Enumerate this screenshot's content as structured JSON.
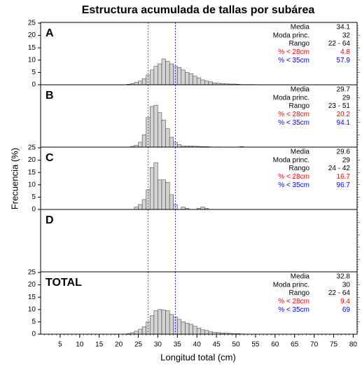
{
  "title": "Estructura acumulada de tallas por subárea",
  "xlabel": "Longitud total (cm)",
  "ylabel": "Frecuencia (%)",
  "xlim": [
    0,
    81
  ],
  "xticks": [
    5,
    10,
    15,
    20,
    25,
    30,
    35,
    40,
    45,
    50,
    55,
    60,
    65,
    70,
    75,
    80
  ],
  "chart_data": [
    {
      "type": "histogram",
      "label": "A",
      "color": "#d3d3d3",
      "bins": [
        22,
        23,
        24,
        25,
        26,
        27,
        28,
        29,
        30,
        31,
        32,
        33,
        34,
        35,
        36,
        37,
        38,
        39,
        40,
        41,
        42,
        43,
        44,
        45,
        46,
        47,
        48,
        49,
        50,
        51,
        52,
        53,
        54,
        55
      ],
      "values": [
        0.2,
        0.5,
        1,
        1.5,
        2.5,
        4,
        6,
        7.5,
        8.5,
        10.5,
        9.5,
        8.5,
        7.5,
        7,
        6,
        5,
        4.5,
        3.5,
        2.8,
        2,
        1.5,
        1.2,
        0.8,
        0.6,
        0.5,
        0.4,
        0.3,
        0.3,
        0.2,
        0.1,
        0.1,
        0.1,
        0.1
      ],
      "ylim": [
        0,
        25
      ],
      "yticks": [
        0,
        5,
        10,
        15,
        20,
        25
      ],
      "reference_lines": [
        {
          "value": 27.5,
          "color": "#ff0000"
        },
        {
          "value": 34.5,
          "color": "#0000ff"
        }
      ],
      "stats": [
        {
          "label": "Media",
          "value": 34.1,
          "color": "#000000"
        },
        {
          "label": "Moda princ.",
          "value": 32,
          "color": "#000000"
        },
        {
          "label": "Rango",
          "value": "22 - 64",
          "color": "#000000"
        },
        {
          "label": "% < 28cm",
          "value": 4.8,
          "color": "#ff0000"
        },
        {
          "label": "% < 35cm",
          "value": 57.9,
          "color": "#0000ff"
        }
      ]
    },
    {
      "type": "histogram",
      "label": "B",
      "color": "#d3d3d3",
      "bins": [
        23,
        24,
        25,
        26,
        27,
        28,
        29,
        30,
        31,
        32,
        33,
        34,
        35,
        36,
        37,
        38,
        39,
        40,
        41,
        42,
        43,
        44,
        45,
        46,
        47,
        48,
        49,
        50,
        51,
        52
      ],
      "values": [
        0.3,
        0.8,
        2,
        5,
        12,
        16.5,
        17,
        14,
        11,
        7.5,
        4,
        2,
        1,
        0.5,
        0.5,
        0.5,
        0.4,
        0.3,
        0.2,
        0.2,
        0.1,
        0,
        0.1,
        0,
        0,
        0,
        0,
        0,
        0.2
      ],
      "ylim": [
        0,
        25
      ],
      "yticks": [],
      "reference_lines": [
        {
          "value": 27.5,
          "color": "#ff0000"
        },
        {
          "value": 34.5,
          "color": "#0000ff"
        }
      ],
      "stats": [
        {
          "label": "Media",
          "value": 29.7,
          "color": "#000000"
        },
        {
          "label": "Moda princ.",
          "value": 29,
          "color": "#000000"
        },
        {
          "label": "Rango",
          "value": "23 - 51",
          "color": "#000000"
        },
        {
          "label": "% < 28cm",
          "value": 20.2,
          "color": "#ff0000"
        },
        {
          "label": "% < 35cm",
          "value": 94.1,
          "color": "#0000ff"
        }
      ]
    },
    {
      "type": "histogram",
      "label": "C",
      "color": "#d3d3d3",
      "bins": [
        24,
        25,
        26,
        27,
        28,
        29,
        30,
        31,
        32,
        33,
        34,
        35,
        36,
        37,
        38,
        39,
        40,
        41,
        42,
        43
      ],
      "values": [
        1,
        2,
        4,
        8,
        17,
        19,
        12,
        12,
        11,
        6,
        2,
        0,
        1,
        0.5,
        0,
        0,
        0.5,
        1,
        0.5
      ],
      "ylim": [
        0,
        25
      ],
      "yticks": [
        0,
        5,
        10,
        15,
        20,
        25
      ],
      "reference_lines": [
        {
          "value": 27.5,
          "color": "#ff0000"
        },
        {
          "value": 34.5,
          "color": "#0000ff"
        }
      ],
      "stats": [
        {
          "label": "Media",
          "value": 29.6,
          "color": "#000000"
        },
        {
          "label": "Moda princ.",
          "value": 29,
          "color": "#000000"
        },
        {
          "label": "Rango",
          "value": "24 - 42",
          "color": "#000000"
        },
        {
          "label": "% < 28cm",
          "value": 16.7,
          "color": "#ff0000"
        },
        {
          "label": "% < 35cm",
          "value": 96.7,
          "color": "#0000ff"
        }
      ]
    },
    {
      "type": "histogram",
      "label": "D",
      "color": "#d3d3d3",
      "ylim": [
        0,
        25
      ],
      "yticks": [],
      "reference_lines": [
        {
          "value": 27.5,
          "color": "#ff0000"
        },
        {
          "value": 34.5,
          "color": "#0000ff"
        }
      ]
    },
    {
      "type": "histogram",
      "label": "TOTAL",
      "color": "#d3d3d3",
      "bins": [
        22,
        23,
        24,
        25,
        26,
        27,
        28,
        29,
        30,
        31,
        32,
        33,
        34,
        35,
        36,
        37,
        38,
        39,
        40,
        41,
        42,
        43,
        44,
        45,
        46,
        47,
        48,
        49,
        50,
        51,
        52
      ],
      "values": [
        0.2,
        0.6,
        1.2,
        2,
        3,
        5,
        7.5,
        9.5,
        10,
        9.8,
        9.5,
        8,
        7,
        6,
        5,
        4.5,
        4,
        3.2,
        2.5,
        1.8,
        1.5,
        1,
        0.8,
        0.6,
        0.5,
        0.4,
        0.3,
        0.2,
        0.2,
        0.1
      ],
      "ylim": [
        0,
        25
      ],
      "yticks": [
        0,
        5,
        10,
        15,
        20,
        25
      ],
      "reference_lines": [
        {
          "value": 27.5,
          "color": "#ff0000"
        },
        {
          "value": 34.5,
          "color": "#0000ff"
        }
      ],
      "stats": [
        {
          "label": "Media",
          "value": 32.8,
          "color": "#000000"
        },
        {
          "label": "Moda princ.",
          "value": 30,
          "color": "#000000"
        },
        {
          "label": "Rango",
          "value": "22 - 64",
          "color": "#000000"
        },
        {
          "label": "% < 28cm",
          "value": 9.4,
          "color": "#ff0000"
        },
        {
          "label": "% < 35cm",
          "value": 69,
          "color": "#0000ff"
        }
      ]
    }
  ]
}
